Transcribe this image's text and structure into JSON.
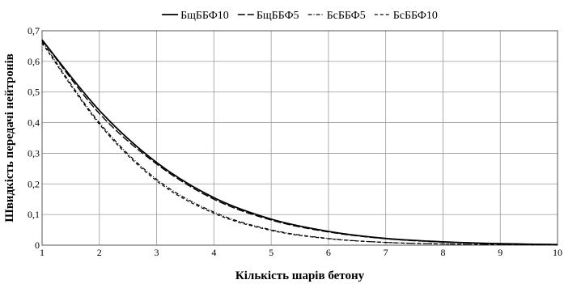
{
  "chart_data": {
    "type": "line",
    "title": "",
    "xlabel": "Кількість шарів бетону",
    "ylabel": "Швидкість передачі нейтронів",
    "xlim": [
      1,
      10
    ],
    "ylim": [
      0,
      0.7
    ],
    "x_ticks": [
      "1",
      "2",
      "3",
      "4",
      "5",
      "6",
      "7",
      "8",
      "9",
      "10"
    ],
    "y_ticks": [
      "0",
      "0,1",
      "0,2",
      "0,3",
      "0,4",
      "0,5",
      "0,6",
      "0,7"
    ],
    "grid": true,
    "legend_position": "top",
    "x": [
      1,
      2,
      3,
      4,
      5,
      6,
      7,
      8,
      9,
      10
    ],
    "series": [
      {
        "name": "БщББФ10",
        "style": "solid",
        "color": "#000000",
        "values": [
          0.67,
          0.44,
          0.27,
          0.155,
          0.085,
          0.045,
          0.022,
          0.011,
          0.005,
          0.002
        ]
      },
      {
        "name": "БщББФ5",
        "style": "longdash",
        "color": "#000000",
        "values": [
          0.67,
          0.43,
          0.265,
          0.15,
          0.082,
          0.043,
          0.021,
          0.01,
          0.005,
          0.002
        ]
      },
      {
        "name": "БсББФ5",
        "style": "dashdot",
        "color": "#000000",
        "values": [
          0.665,
          0.4,
          0.215,
          0.108,
          0.05,
          0.022,
          0.009,
          0.004,
          0.002,
          0.001
        ]
      },
      {
        "name": "БсББФ10",
        "style": "dash",
        "color": "#000000",
        "values": [
          0.66,
          0.395,
          0.21,
          0.104,
          0.048,
          0.021,
          0.009,
          0.004,
          0.002,
          0.001
        ]
      }
    ]
  }
}
